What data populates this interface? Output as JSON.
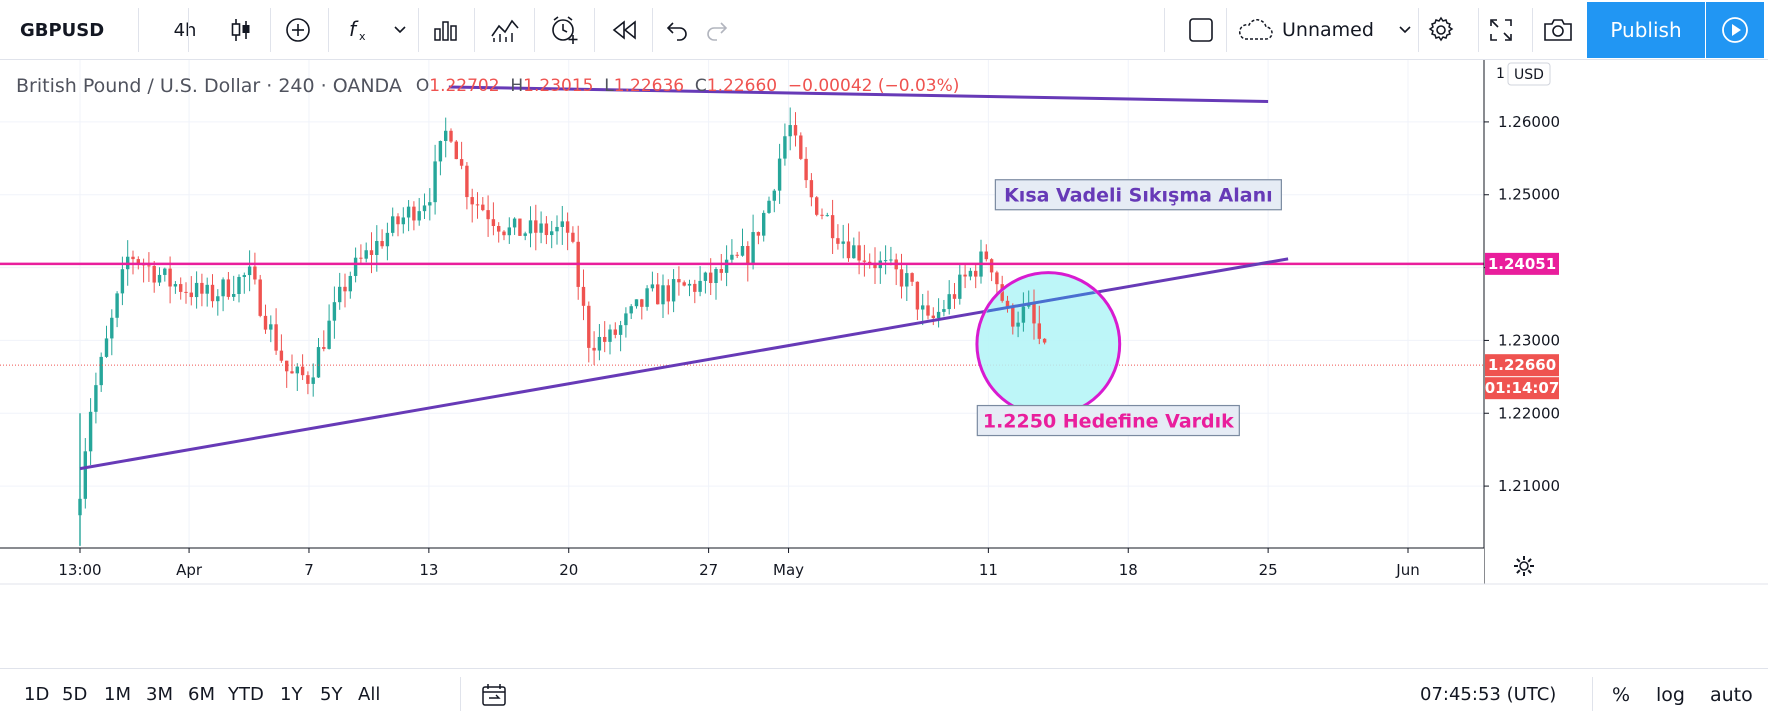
{
  "toolbar": {
    "symbol": "GBPUSD",
    "interval": "4h",
    "layout_name": "Unnamed",
    "publish_label": "Publish"
  },
  "legend": {
    "title": "British Pound / U.S. Dollar · 240 · OANDA",
    "o_label": "O",
    "o_value": "1.22702",
    "h_label": "H",
    "h_value": "1.23015",
    "l_label": "L",
    "l_value": "1.22636",
    "c_label": "C",
    "c_value": "1.22660",
    "change": "−0.00042 (−0.03%)"
  },
  "colors": {
    "up": "#26a69a",
    "down": "#ef5350",
    "trendline": "#673ab7",
    "hline": "#e91e9c",
    "circle_stroke": "#d81bd0",
    "circle_fill": "#b2f5f7",
    "accent": "#2196f3"
  },
  "chart_data": {
    "type": "candlestick",
    "title": "British Pound / U.S. Dollar · 240 · OANDA",
    "currency": "USD",
    "y_axis_top_label": "1",
    "ylim": [
      1.2015,
      1.2685
    ],
    "yticks": [
      1.21,
      1.22,
      1.23,
      1.24,
      1.25,
      1.26
    ],
    "ytick_labels": [
      "1.21000",
      "1.22000",
      "1.23000",
      "1.24000",
      "1.25000",
      "1.26000"
    ],
    "x_ticks": [
      {
        "label": "13:00",
        "date": "2020-03-26 13:00"
      },
      {
        "label": "Apr",
        "date": "2020-04-01"
      },
      {
        "label": "7",
        "date": "2020-04-07"
      },
      {
        "label": "13",
        "date": "2020-04-13"
      },
      {
        "label": "20",
        "date": "2020-04-20"
      },
      {
        "label": "27",
        "date": "2020-04-27"
      },
      {
        "label": "May",
        "date": "2020-05-01"
      },
      {
        "label": "11",
        "date": "2020-05-11"
      },
      {
        "label": "18",
        "date": "2020-05-18"
      },
      {
        "label": "25",
        "date": "2020-05-25"
      },
      {
        "label": "Jun",
        "date": "2020-06-01"
      }
    ],
    "price_path": [
      {
        "date": "2020-03-26 13:00",
        "price": 1.21
      },
      {
        "date": "2020-03-27",
        "price": 1.22
      },
      {
        "date": "2020-03-29",
        "price": 1.242
      },
      {
        "date": "2020-03-31",
        "price": 1.238
      },
      {
        "date": "2020-04-02",
        "price": 1.236
      },
      {
        "date": "2020-04-04",
        "price": 1.239
      },
      {
        "date": "2020-04-06",
        "price": 1.225
      },
      {
        "date": "2020-04-07",
        "price": 1.225
      },
      {
        "date": "2020-04-09",
        "price": 1.239
      },
      {
        "date": "2020-04-11",
        "price": 1.245
      },
      {
        "date": "2020-04-13",
        "price": 1.25
      },
      {
        "date": "2020-04-14",
        "price": 1.26
      },
      {
        "date": "2020-04-15",
        "price": 1.25
      },
      {
        "date": "2020-04-17",
        "price": 1.245
      },
      {
        "date": "2020-04-20",
        "price": 1.245
      },
      {
        "date": "2020-04-21",
        "price": 1.23
      },
      {
        "date": "2020-04-22",
        "price": 1.23
      },
      {
        "date": "2020-04-24",
        "price": 1.236
      },
      {
        "date": "2020-04-27",
        "price": 1.238
      },
      {
        "date": "2020-04-29",
        "price": 1.242
      },
      {
        "date": "2020-04-30",
        "price": 1.249
      },
      {
        "date": "2020-05-01",
        "price": 1.26
      },
      {
        "date": "2020-05-02",
        "price": 1.25
      },
      {
        "date": "2020-05-04",
        "price": 1.243
      },
      {
        "date": "2020-05-07",
        "price": 1.238
      },
      {
        "date": "2020-05-08",
        "price": 1.232
      },
      {
        "date": "2020-05-10",
        "price": 1.239
      },
      {
        "date": "2020-05-11",
        "price": 1.242
      },
      {
        "date": "2020-05-12",
        "price": 1.233
      },
      {
        "date": "2020-05-13",
        "price": 1.234
      },
      {
        "date": "2020-05-14",
        "price": 1.2266
      }
    ],
    "last_price": 1.2266,
    "last_price_label": "1.22660",
    "countdown_label": "01:14:07",
    "horizontal_level": 1.24051,
    "horizontal_level_label": "1.24051",
    "trendlines": [
      {
        "name": "resistance",
        "start": {
          "date": "2020-04-14",
          "price": 1.2648
        },
        "end": {
          "date": "2020-05-25",
          "price": 1.2628
        }
      },
      {
        "name": "support",
        "start": {
          "date": "2020-03-26 13:00",
          "price": 1.2124
        },
        "end": {
          "date": "2020-05-26",
          "price": 1.2412
        }
      }
    ],
    "highlight_circle": {
      "center": {
        "date": "2020-05-14",
        "price": 1.2295
      },
      "radius_price": 0.0098
    },
    "annotations": [
      {
        "text": "Kısa Vadeli Sıkışma Alanı",
        "color": "#673ab7",
        "anchor": {
          "date": "2020-05-11",
          "price": 1.25
        }
      },
      {
        "text": "1.2250 Hedefine Vardık",
        "color": "#e91e9c",
        "anchor": {
          "date": "2020-05-14",
          "price": 1.219
        }
      }
    ],
    "grid": true,
    "legend_placement": "top-left"
  },
  "bottombar": {
    "ranges": [
      "1D",
      "5D",
      "1M",
      "3M",
      "6M",
      "YTD",
      "1Y",
      "5Y",
      "All"
    ],
    "clock": "07:45:53 (UTC)",
    "percent_label": "%",
    "log_label": "log",
    "auto_label": "auto"
  }
}
